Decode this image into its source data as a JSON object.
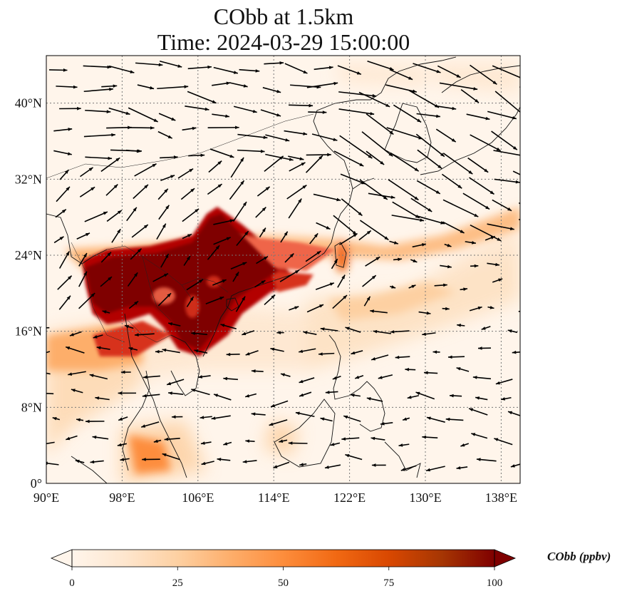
{
  "title": {
    "line1": "CObb at 1.5km",
    "line2": "Time: 2024-03-29 15:00:00"
  },
  "map": {
    "lon_range": [
      90,
      140
    ],
    "lat_range": [
      0,
      45
    ],
    "lon_ticks": [
      {
        "value": 90,
        "label": "90°E"
      },
      {
        "value": 98,
        "label": "98°E"
      },
      {
        "value": 106,
        "label": "106°E"
      },
      {
        "value": 114,
        "label": "114°E"
      },
      {
        "value": 122,
        "label": "122°E"
      },
      {
        "value": 130,
        "label": "130°E"
      },
      {
        "value": 138,
        "label": "138°E"
      }
    ],
    "lat_ticks": [
      {
        "value": 0,
        "label": "0°"
      },
      {
        "value": 8,
        "label": "8°N"
      },
      {
        "value": 16,
        "label": "16°N"
      },
      {
        "value": 24,
        "label": "24°N"
      },
      {
        "value": 32,
        "label": "32°N"
      },
      {
        "value": 40,
        "label": "40°N"
      }
    ],
    "gridlines": true,
    "plume_color_max": "#7f0000",
    "plume_color_mid": "#e34a33",
    "plume_color_low": "#fdd49e",
    "background_color": "#fff5eb"
  },
  "colorbar": {
    "title": "CObb (ppbv)",
    "min": 0,
    "max": 100,
    "ticks": [
      {
        "value": 0,
        "label": "0"
      },
      {
        "value": 25,
        "label": "25"
      },
      {
        "value": 50,
        "label": "50"
      },
      {
        "value": 75,
        "label": "75"
      },
      {
        "value": 100,
        "label": "100"
      }
    ],
    "extend": "both",
    "colors": [
      "#fff5eb",
      "#fee6ce",
      "#fdd0a2",
      "#fdae6b",
      "#fd8d3c",
      "#f16913",
      "#d94801",
      "#a63603",
      "#7f0000"
    ]
  }
}
